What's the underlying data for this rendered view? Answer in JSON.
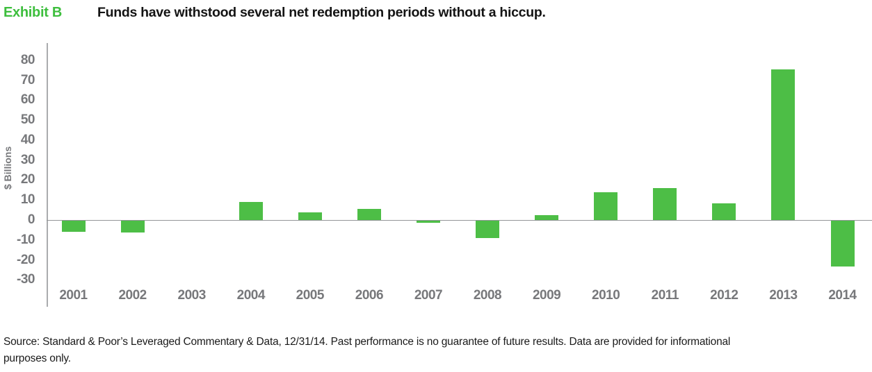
{
  "header": {
    "exhibit_label": "Exhibit B",
    "title": "Funds have withstood several net redemption periods without a hiccup."
  },
  "chart_data": {
    "type": "bar",
    "title": "Funds have withstood several net redemption periods without a hiccup.",
    "categories": [
      "2001",
      "2002",
      "2003",
      "2004",
      "2005",
      "2006",
      "2007",
      "2008",
      "2009",
      "2010",
      "2011",
      "2012",
      "2013",
      "2014"
    ],
    "values": [
      -5.5,
      -6,
      0,
      9,
      4,
      5.5,
      -1,
      -8.5,
      2.5,
      14,
      16,
      8.5,
      75.5,
      -23
    ],
    "xlabel": "",
    "ylabel": "$ Billions",
    "ylim": [
      -30,
      80
    ],
    "ytick_step": 10,
    "grid": false,
    "legend": "none",
    "bar_color": "#4dbe46",
    "exhibit_label_color": "#3dbe3d",
    "axis_line_color": "#aaacae",
    "zero_line_color": "#939598",
    "axis_text_color": "#77787b"
  },
  "footer": {
    "source_lines": [
      "Source: Standard & Poor’s Leveraged Commentary & Data, 12/31/14. Past performance is no guarantee of future results. Data are provided for informational",
      "purposes only."
    ]
  }
}
